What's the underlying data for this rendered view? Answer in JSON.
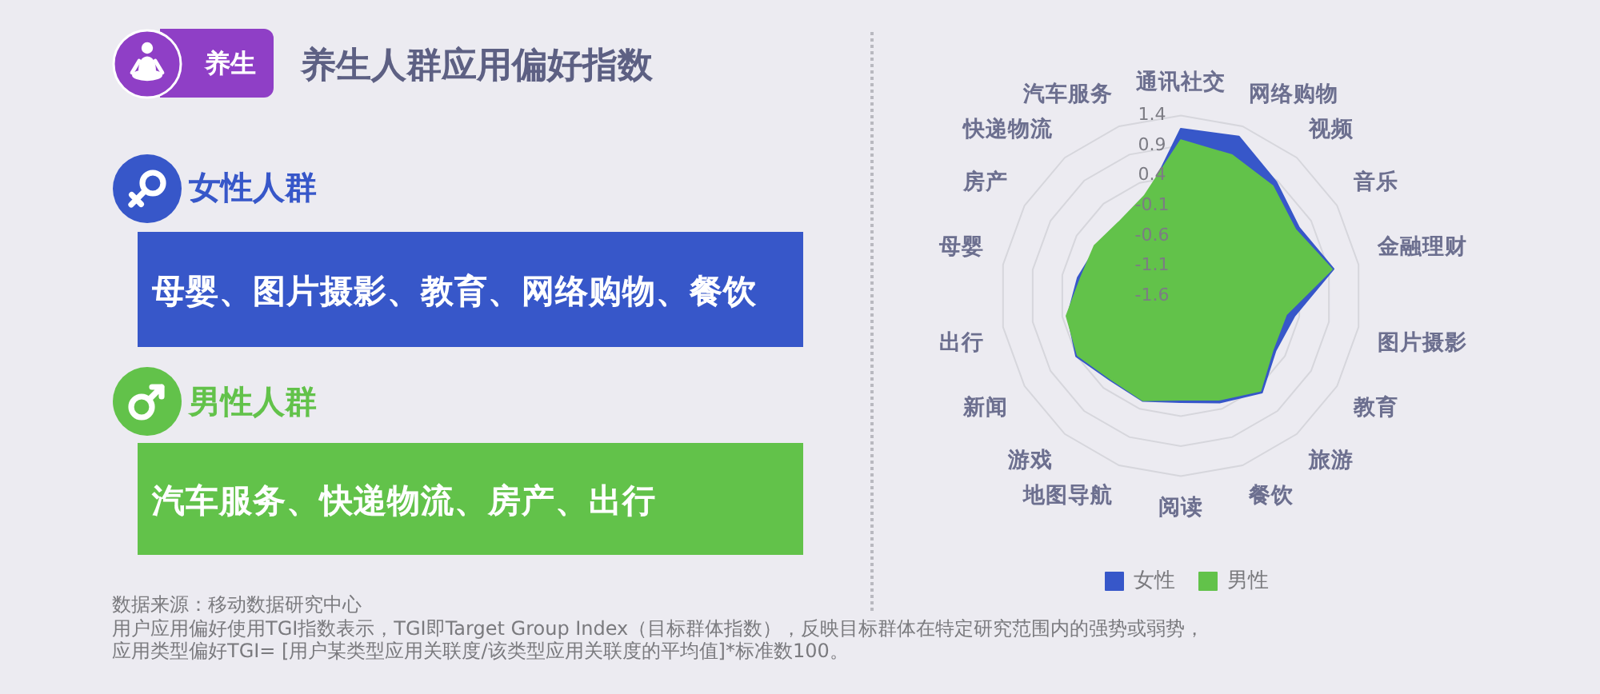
{
  "chart_data": [
    {
      "type": "other",
      "title": "养生人群应用偏好指数",
      "annotations": [
        "养生",
        "女性人群",
        "母婴、图片摄影、教育、网络购物、餐饮",
        "男性人群",
        "汽车服务、快递物流、房产、出行",
        "数据来源：移动数据研究中心",
        "用户应用偏好使用TGI指数表示，TGI即Target Group Index（目标群体指数），反映目标群体在特定研究范围内的强势或弱势，",
        "应用类型偏好TGI= [用户某类型应用关联度/该类型应用关联度的平均值]*标准数100。"
      ]
    },
    {
      "type": "radar",
      "categories": [
        "通讯社交",
        "网络购物",
        "视频",
        "音乐",
        "金融理财",
        "图片摄影",
        "教育",
        "旅游",
        "餐饮",
        "阅读",
        "地图导航",
        "游戏",
        "新闻",
        "出行",
        "母婴",
        "房产",
        "快递物流",
        "汽车服务"
      ],
      "series": [
        {
          "name": "女性",
          "color": "#3757c9",
          "values": [
            1.18,
            1.22,
            0.87,
            0.67,
            0.98,
            0.32,
            0.22,
            0.5,
            0.29,
            0.17,
            0.26,
            0.23,
            0.41,
            0.31,
            0.14,
            0.02,
            -0.05,
            0.1
          ]
        },
        {
          "name": "男性",
          "color": "#62c24a",
          "values": [
            0.99,
            0.89,
            0.78,
            0.6,
            0.95,
            0.18,
            0.17,
            0.46,
            0.24,
            0.13,
            0.25,
            0.21,
            0.38,
            0.33,
            0.09,
            0.06,
            0.0,
            0.17
          ]
        }
      ],
      "ylim": [
        -1.6,
        1.4
      ],
      "yticks": [
        -1.6,
        -1.1,
        -0.6,
        -0.1,
        0.4,
        0.9,
        1.4
      ],
      "grid": true,
      "legend": "bottom"
    }
  ]
}
